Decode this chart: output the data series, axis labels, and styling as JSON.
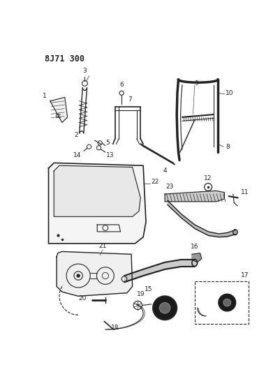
{
  "title": "8J71 300",
  "bg_color": "#ffffff",
  "fig_width": 4.01,
  "fig_height": 5.33,
  "dpi": 100,
  "line_color": "#222222",
  "label_fontsize": 6.5,
  "title_fontsize": 8.5
}
